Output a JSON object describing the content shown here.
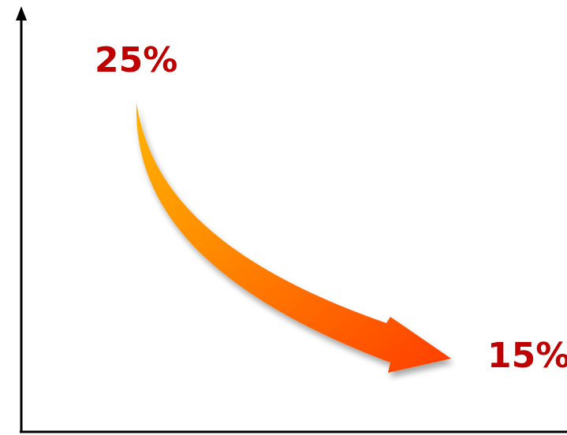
{
  "chart_data": {
    "type": "line",
    "title": "",
    "xlabel": "",
    "ylabel": "",
    "grid": false,
    "legend": "none",
    "points": [
      {
        "label": "25%",
        "value": 25
      },
      {
        "label": "15%",
        "value": 15
      }
    ],
    "colors": {
      "label": "#c00000",
      "axis": "#000000",
      "arrow_start": "#ffb300",
      "arrow_end": "#ff3d00"
    }
  }
}
